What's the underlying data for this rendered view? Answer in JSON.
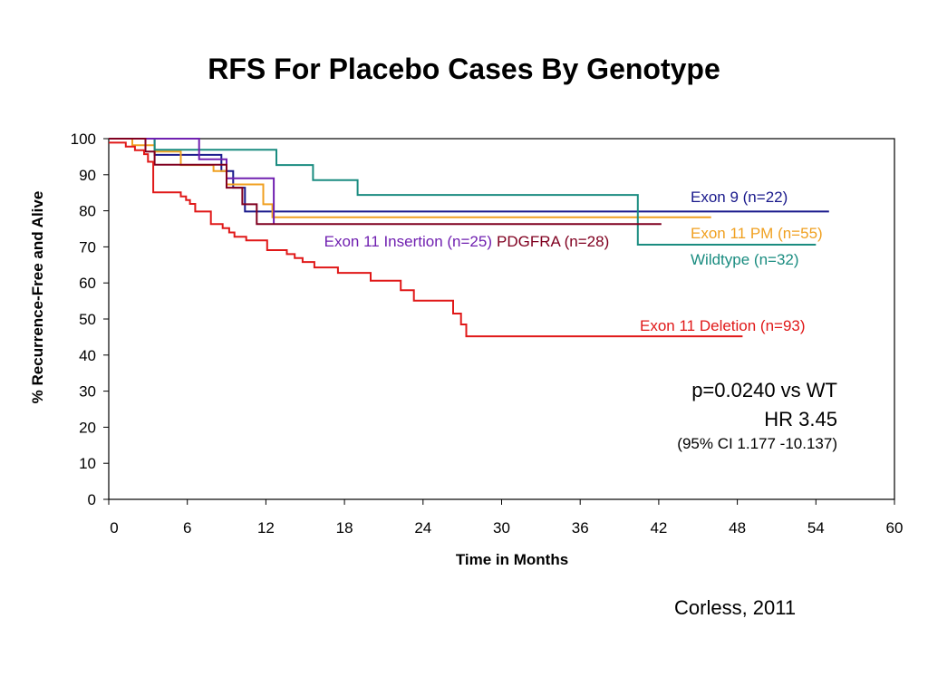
{
  "title": "RFS For Placebo Cases By Genotype",
  "chart_data": {
    "type": "line",
    "step": true,
    "xlabel": "Time in Months",
    "ylabel": "% Recurrence-Free and Alive",
    "xlim": [
      0,
      60
    ],
    "ylim": [
      0,
      100
    ],
    "xticks": [
      "0",
      "6",
      "12",
      "18",
      "24",
      "30",
      "36",
      "42",
      "48",
      "54",
      "60"
    ],
    "yticks": [
      "0",
      "10",
      "20",
      "30",
      "40",
      "50",
      "60",
      "70",
      "80",
      "90",
      "100"
    ],
    "grid": false,
    "series": [
      {
        "name": "Exon 9 (n=22)",
        "color": "#1a1a8c",
        "x": [
          0,
          3.2,
          3.5,
          8.6,
          9.5,
          10.4,
          55
        ],
        "y": [
          100,
          100,
          95.5,
          91,
          86.4,
          79.8,
          79.8
        ]
      },
      {
        "name": "Exon 11 PM (n=55)",
        "color": "#f0a020",
        "x": [
          0,
          1.8,
          3.5,
          5.5,
          8,
          9,
          11.8,
          12.5,
          46
        ],
        "y": [
          100,
          98.2,
          96.4,
          92.7,
          91,
          87.3,
          81.8,
          78.2,
          78.2
        ]
      },
      {
        "name": "Wildtype (n=32)",
        "color": "#1a8c80",
        "x": [
          0,
          3.5,
          12.8,
          15.6,
          19,
          40.4,
          54
        ],
        "y": [
          100,
          96.9,
          92.7,
          88.5,
          84.4,
          70.6,
          70.6
        ]
      },
      {
        "name": "Exon 11 Insertion (n=25)",
        "color": "#7020b0",
        "x": [
          0,
          6.9,
          9,
          12.6
        ],
        "y": [
          100,
          94.3,
          89,
          76.4
        ]
      },
      {
        "name": "PDGFRA (n=28)",
        "color": "#800020",
        "x": [
          0,
          2.8,
          3.5,
          9,
          10.2,
          11.3,
          42.2
        ],
        "y": [
          100,
          96.4,
          92.8,
          86.4,
          81.8,
          76.3,
          76.3
        ]
      },
      {
        "name": "Exon 11 Deletion (n=93)",
        "color": "#e01818",
        "x": [
          0,
          0.2,
          1.3,
          2,
          2.7,
          3,
          3.4,
          5.5,
          5.9,
          6.2,
          6.6,
          7.8,
          8.7,
          9.2,
          9.6,
          10.5,
          12.1,
          13.6,
          14.2,
          14.8,
          15.7,
          17.5,
          20,
          22.3,
          23.3,
          26.3,
          26.9,
          27.3,
          48.4
        ],
        "y": [
          98.9,
          98.9,
          97.8,
          96.8,
          95.7,
          93.6,
          85.1,
          84,
          83,
          81.9,
          79.8,
          76.3,
          75.2,
          74,
          72.8,
          71.8,
          69.1,
          68,
          66.9,
          65.8,
          64.3,
          62.8,
          60.6,
          58,
          55.1,
          51.5,
          48.5,
          45.2,
          45.2
        ]
      }
    ],
    "stats": {
      "p_value": "p=0.0240 vs WT",
      "hr": "HR 3.45",
      "ci": "(95% CI 1.177 -10.137)"
    }
  },
  "citation": "Corless, 2011"
}
